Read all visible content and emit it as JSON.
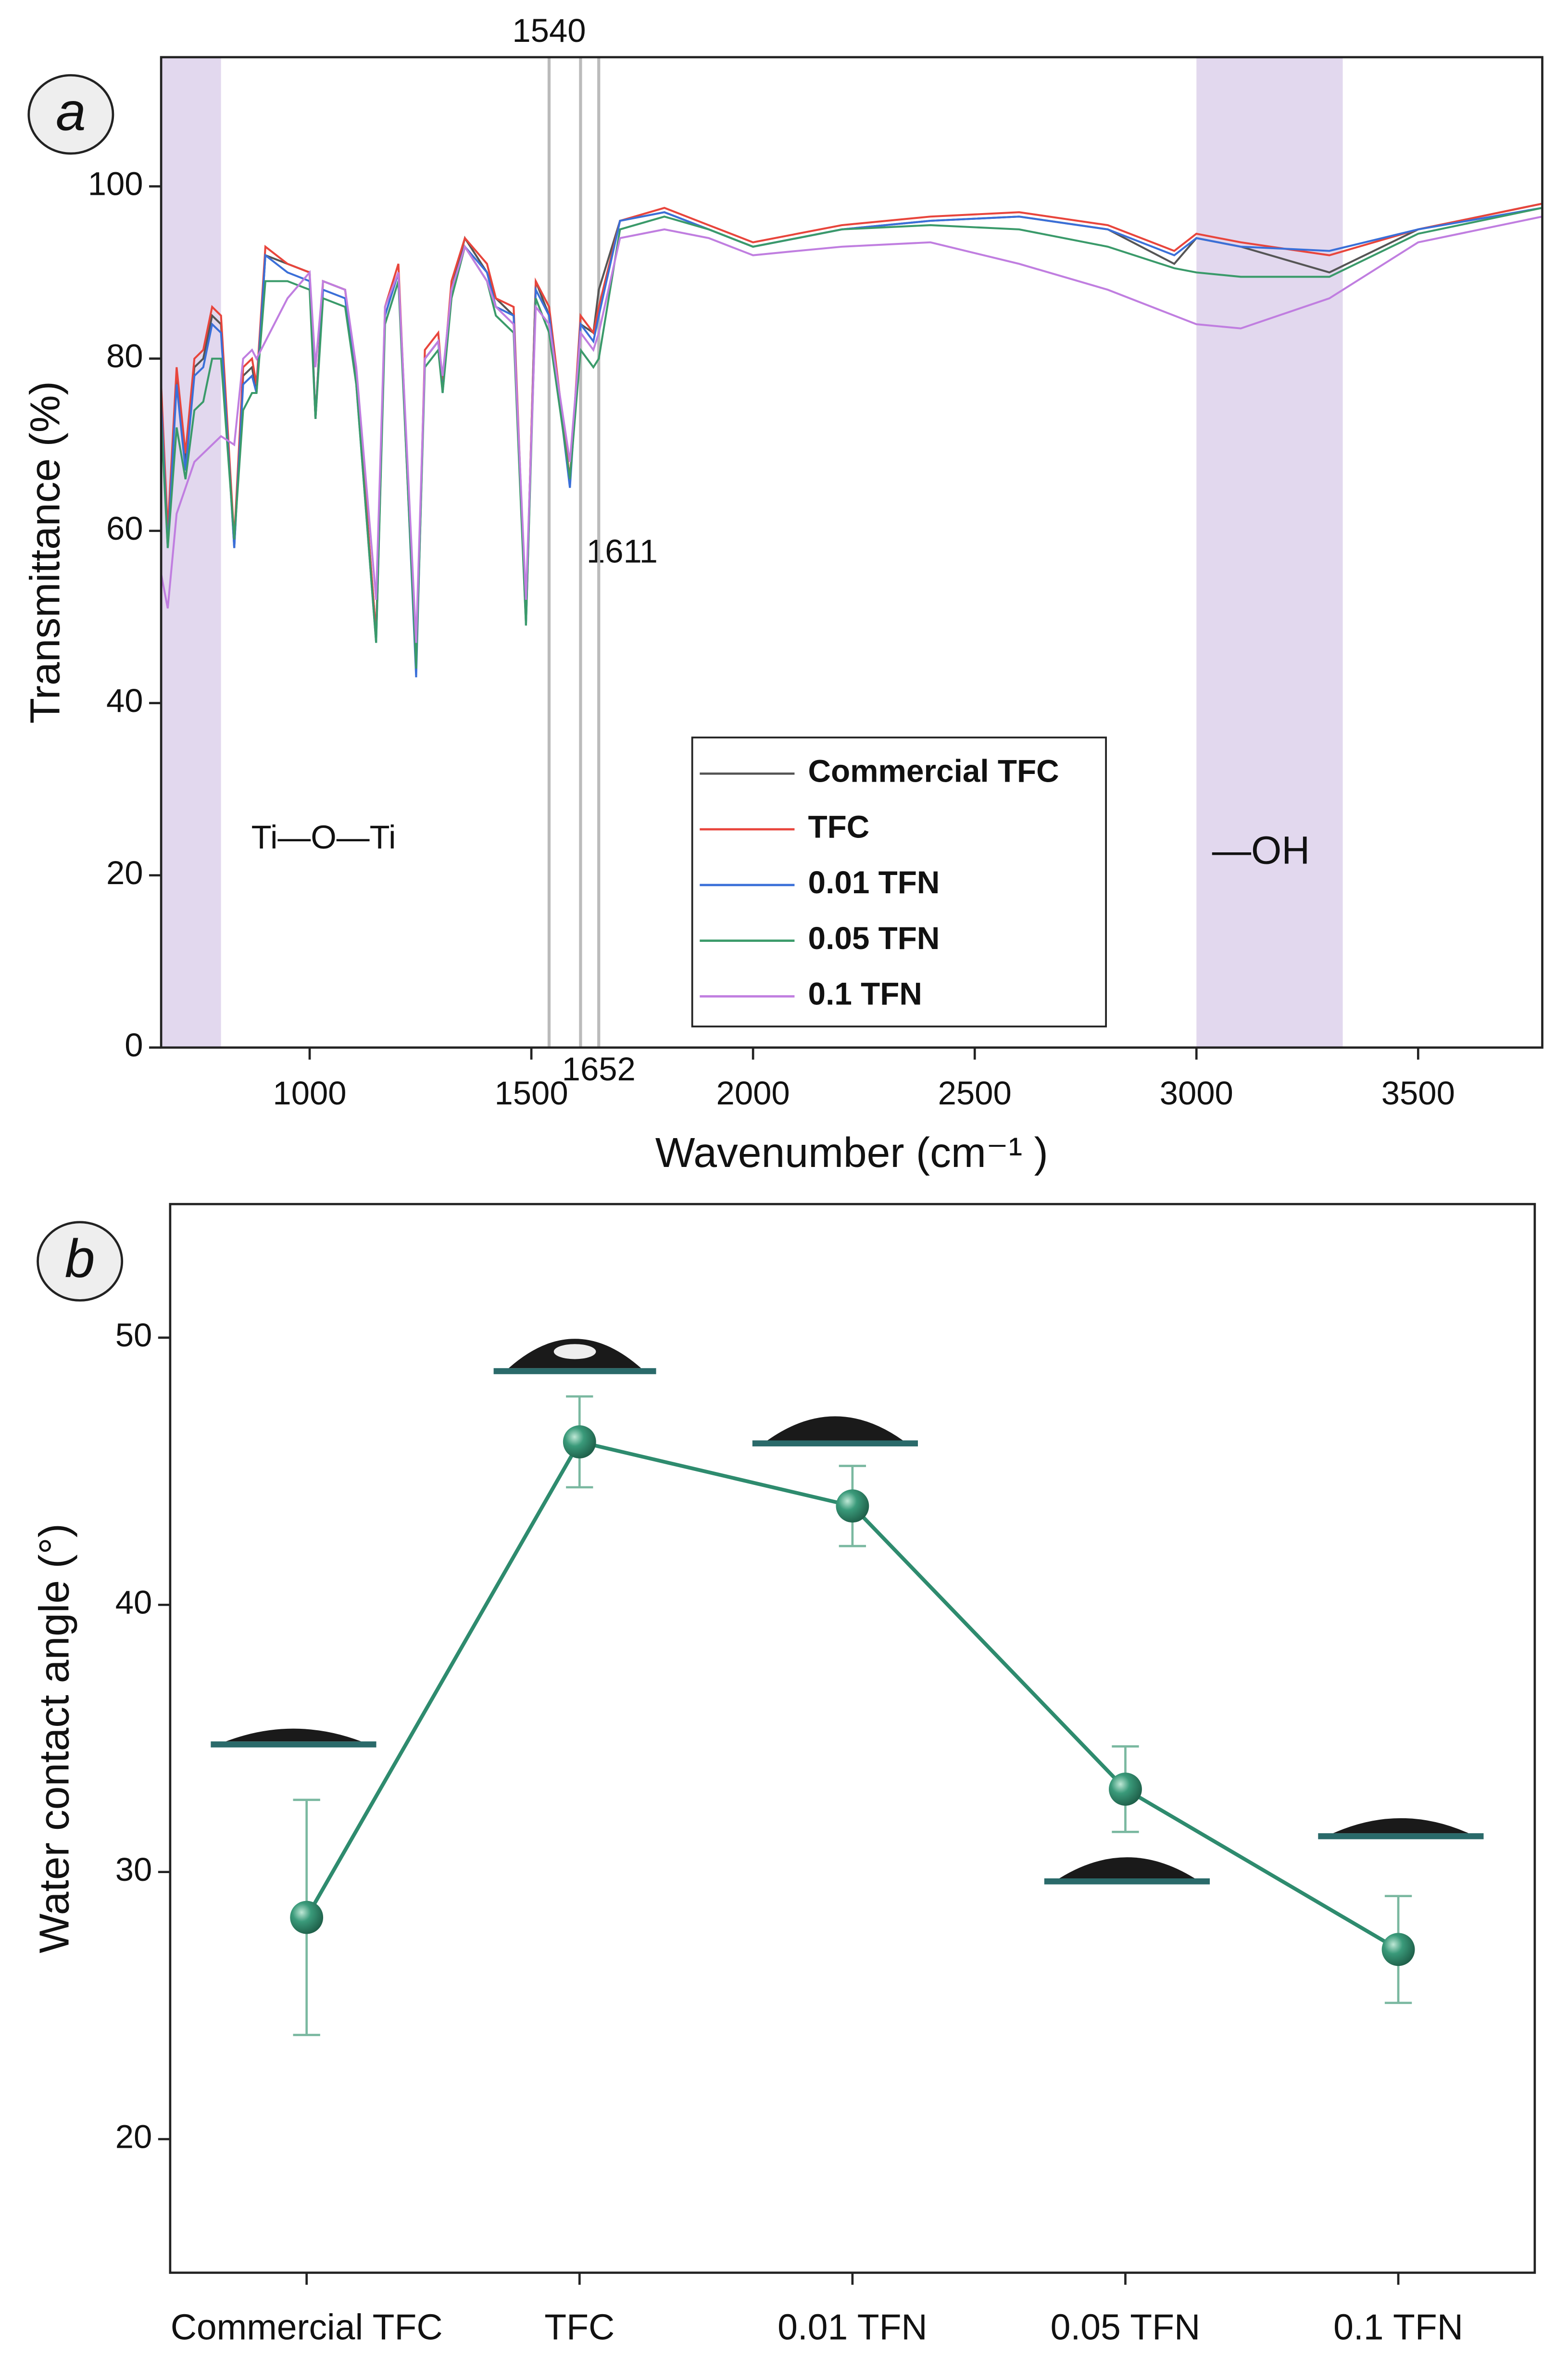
{
  "chart_data": [
    {
      "type": "line",
      "label": "a",
      "xlabel": "Wavenumber (cm⁻¹ )",
      "ylabel": "Transmittance (%)",
      "x": [
        665,
        680,
        700,
        720,
        740,
        760,
        780,
        800,
        830,
        850,
        870,
        880,
        900,
        950,
        1000,
        1013,
        1030,
        1080,
        1105,
        1150,
        1170,
        1200,
        1240,
        1260,
        1290,
        1300,
        1320,
        1350,
        1400,
        1420,
        1460,
        1488,
        1510,
        1540,
        1587,
        1611,
        1640,
        1652,
        1700,
        1800,
        1900,
        2000,
        2100,
        2200,
        2400,
        2600,
        2800,
        2950,
        3000,
        3100,
        3300,
        3500,
        3780
      ],
      "series": [
        {
          "name": "Commercial TFC",
          "color": "#555555",
          "values": [
            76,
            59,
            78,
            68,
            79,
            80,
            85,
            84,
            58,
            78,
            79,
            76,
            92,
            91,
            90,
            73,
            89,
            88,
            78,
            48,
            85,
            90,
            44,
            80,
            82,
            77,
            88,
            94,
            90,
            87,
            85,
            50,
            89,
            85,
            66,
            84,
            83,
            88,
            96,
            97,
            95,
            93,
            94,
            95,
            96,
            96.5,
            95,
            91,
            94,
            93,
            90,
            95,
            98
          ]
        },
        {
          "name": "TFC",
          "color": "#e8453c",
          "values": [
            77,
            60,
            79,
            69,
            80,
            81,
            86,
            85,
            59,
            79,
            80,
            77,
            93,
            91,
            90,
            73,
            89,
            88,
            78,
            48,
            86,
            91,
            44,
            81,
            83,
            77,
            89,
            94,
            91,
            87,
            86,
            50,
            89,
            86,
            66,
            85,
            83,
            86,
            96,
            97.5,
            95.5,
            93.5,
            94.5,
            95.5,
            96.5,
            97,
            95.5,
            92.5,
            94.5,
            93.5,
            92,
            95,
            98
          ]
        },
        {
          "name": "0.01 TFN",
          "color": "#3a6fd8",
          "values": [
            75,
            58,
            77,
            67,
            78,
            79,
            84,
            83,
            58,
            77,
            78,
            76,
            92,
            90,
            89,
            73,
            88,
            87,
            77,
            47,
            85,
            90,
            43,
            80,
            82,
            76,
            88,
            93,
            90,
            86,
            85,
            49,
            88,
            85,
            65,
            84,
            82,
            85,
            96,
            97,
            95,
            93,
            94,
            95,
            96,
            96.5,
            95,
            92,
            94,
            93,
            92.5,
            95,
            97.5
          ]
        },
        {
          "name": "0.05 TFN",
          "color": "#3a9a6a",
          "values": [
            73,
            58,
            72,
            66,
            74,
            75,
            80,
            80,
            59,
            74,
            76,
            76,
            89,
            89,
            88,
            73,
            87,
            86,
            77,
            47,
            84,
            89,
            44,
            79,
            81,
            76,
            87,
            93,
            89,
            85,
            83,
            49,
            87,
            83,
            66,
            81,
            79,
            80,
            95,
            96.5,
            95,
            93,
            94,
            95,
            95.5,
            95,
            93,
            90.5,
            90,
            89.5,
            89.5,
            94.5,
            97.5
          ]
        },
        {
          "name": "0.1 TFN",
          "color": "#c07ee0",
          "values": [
            55,
            51,
            62,
            65,
            68,
            69,
            70,
            71,
            70,
            80,
            81,
            80,
            82,
            87,
            90,
            79,
            89,
            88,
            79,
            52,
            86,
            90,
            47,
            80,
            82,
            78,
            88,
            93,
            89,
            86,
            84,
            52,
            86,
            84,
            68,
            83,
            81,
            83,
            94,
            95,
            94,
            92,
            92.5,
            93,
            93.5,
            91,
            88,
            85,
            84,
            83.5,
            87,
            93.5,
            96.5
          ]
        }
      ],
      "vlines": [
        1540,
        1611,
        1652
      ],
      "shaded_regions": [
        [
          665,
          800
        ],
        [
          3000,
          3330
        ]
      ],
      "annotations": [
        "Ti—O—Ti",
        "—OH"
      ],
      "xlim": [
        665,
        3780
      ],
      "ylim": [
        0,
        115
      ],
      "xticks": [
        1000,
        1500,
        2000,
        2500,
        3000,
        3500
      ],
      "yticks": [
        0,
        20,
        40,
        60,
        80,
        100
      ],
      "legend": "lower center"
    },
    {
      "type": "line",
      "label": "b",
      "ylabel": "Water contact angle (°)",
      "categories": [
        "Commercial TFC",
        "TFC",
        "0.01 TFN",
        "0.05 TFN",
        "0.1 TFN"
      ],
      "values": [
        28.3,
        46.1,
        43.7,
        33.1,
        27.1
      ],
      "errors": [
        4.4,
        1.7,
        1.5,
        1.6,
        2.0
      ],
      "color": "#2e8b6e",
      "ylim": [
        15,
        55
      ],
      "yticks": [
        20,
        30,
        40,
        50
      ]
    }
  ]
}
